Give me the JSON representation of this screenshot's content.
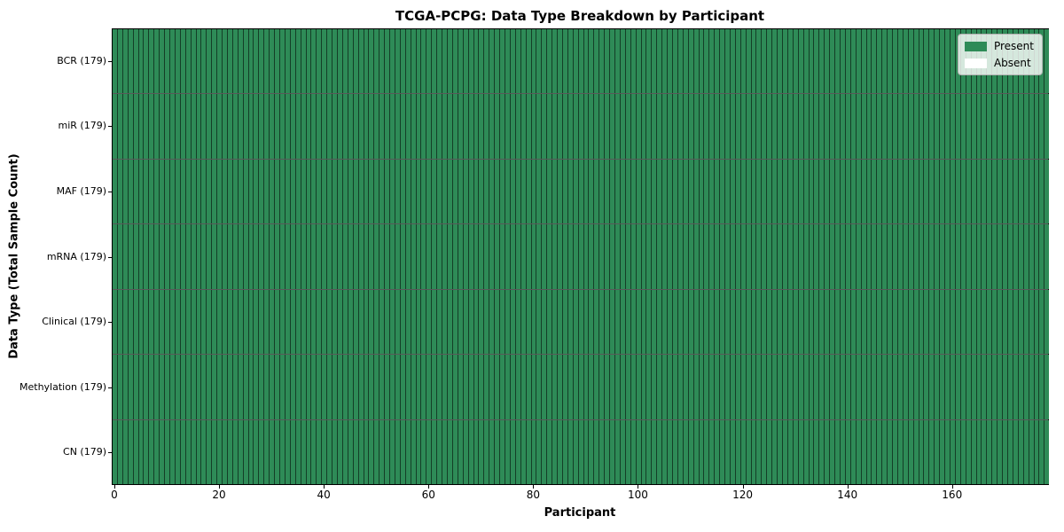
{
  "chart_data": {
    "type": "heatmap",
    "title": "TCGA-PCPG: Data Type Breakdown by Participant",
    "xlabel": "Participant",
    "ylabel": "Data Type (Total Sample Count)",
    "n_participants": 179,
    "x_range": [
      -0.5,
      178.5
    ],
    "x_ticks": [
      0,
      20,
      40,
      60,
      80,
      100,
      120,
      140,
      160
    ],
    "grid": false,
    "rows": [
      {
        "label": "BCR (179)",
        "data_type": "BCR",
        "total_samples": 179,
        "present_count": 179,
        "absent_indices": []
      },
      {
        "label": "miR (179)",
        "data_type": "miR",
        "total_samples": 179,
        "present_count": 179,
        "absent_indices": []
      },
      {
        "label": "MAF (179)",
        "data_type": "MAF",
        "total_samples": 179,
        "present_count": 179,
        "absent_indices": []
      },
      {
        "label": "mRNA (179)",
        "data_type": "mRNA",
        "total_samples": 179,
        "present_count": 179,
        "absent_indices": []
      },
      {
        "label": "Clinical (179)",
        "data_type": "Clinical",
        "total_samples": 179,
        "present_count": 179,
        "absent_indices": []
      },
      {
        "label": "Methylation (179)",
        "data_type": "Methylation",
        "total_samples": 179,
        "present_count": 179,
        "absent_indices": []
      },
      {
        "label": "CN (179)",
        "data_type": "CN",
        "total_samples": 179,
        "present_count": 179,
        "absent_indices": []
      }
    ],
    "legend": {
      "position": "upper-right",
      "entries": [
        {
          "label": "Present",
          "color": "#2e8b57"
        },
        {
          "label": "Absent",
          "color": "#ffffff"
        }
      ]
    },
    "colors": {
      "present": "#2e8b57",
      "absent": "#ffffff",
      "cell_edge": "rgba(0,0,0,0.55)",
      "spine": "#000000"
    }
  }
}
